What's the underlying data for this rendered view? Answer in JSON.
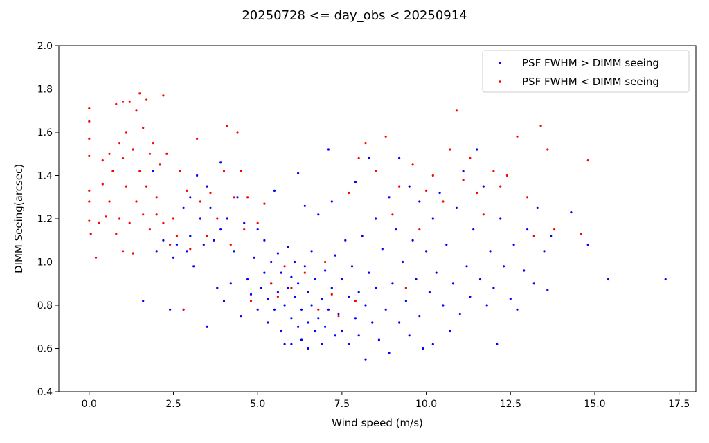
{
  "chart_data": {
    "type": "scatter",
    "title": "20250728 <= day_obs < 20250914",
    "xlabel": "Wind speed (m/s)",
    "ylabel": "DIMM Seeing(arcsec)",
    "xlim": [
      -0.9,
      18.0
    ],
    "ylim": [
      0.4,
      2.0
    ],
    "xticks": [
      0.0,
      2.5,
      5.0,
      7.5,
      10.0,
      12.5,
      15.0,
      17.5
    ],
    "xtick_labels": [
      "0.0",
      "2.5",
      "5.0",
      "7.5",
      "10.0",
      "12.5",
      "15.0",
      "17.5"
    ],
    "yticks": [
      0.4,
      0.6,
      0.8,
      1.0,
      1.2,
      1.4,
      1.6,
      1.8,
      2.0
    ],
    "ytick_labels": [
      "0.4",
      "0.6",
      "0.8",
      "1.0",
      "1.2",
      "1.4",
      "1.6",
      "1.8",
      "2.0"
    ],
    "grid": false,
    "legend_position": "top-right",
    "series": [
      {
        "name": "PSF FWHM > DIMM seeing",
        "color": "#0000ff",
        "points": [
          [
            1.6,
            0.82
          ],
          [
            1.9,
            1.42
          ],
          [
            2.0,
            1.05
          ],
          [
            2.2,
            1.1
          ],
          [
            2.4,
            0.78
          ],
          [
            2.5,
            1.02
          ],
          [
            2.6,
            1.08
          ],
          [
            2.8,
            1.25
          ],
          [
            2.8,
            0.78
          ],
          [
            2.9,
            1.05
          ],
          [
            3.0,
            1.3
          ],
          [
            3.0,
            1.12
          ],
          [
            3.1,
            0.98
          ],
          [
            3.2,
            1.4
          ],
          [
            3.3,
            1.2
          ],
          [
            3.4,
            1.08
          ],
          [
            3.5,
            0.7
          ],
          [
            3.5,
            1.35
          ],
          [
            3.6,
            1.25
          ],
          [
            3.7,
            1.1
          ],
          [
            3.8,
            0.88
          ],
          [
            3.9,
            1.15
          ],
          [
            3.9,
            1.46
          ],
          [
            4.0,
            0.82
          ],
          [
            4.1,
            1.2
          ],
          [
            4.2,
            0.9
          ],
          [
            4.3,
            1.05
          ],
          [
            4.4,
            1.3
          ],
          [
            4.5,
            0.75
          ],
          [
            4.6,
            1.18
          ],
          [
            4.7,
            0.92
          ],
          [
            4.8,
            0.85
          ],
          [
            4.9,
            1.02
          ],
          [
            5.0,
            0.78
          ],
          [
            5.0,
            1.15
          ],
          [
            5.1,
            0.88
          ],
          [
            5.2,
            0.95
          ],
          [
            5.2,
            1.1
          ],
          [
            5.3,
            0.72
          ],
          [
            5.3,
            0.83
          ],
          [
            5.4,
            1.0
          ],
          [
            5.4,
            0.9
          ],
          [
            5.5,
            1.33
          ],
          [
            5.5,
            0.78
          ],
          [
            5.6,
            0.86
          ],
          [
            5.6,
            1.04
          ],
          [
            5.7,
            0.68
          ],
          [
            5.7,
            0.95
          ],
          [
            5.8,
            0.8
          ],
          [
            5.8,
            0.62
          ],
          [
            5.9,
            1.07
          ],
          [
            5.9,
            0.88
          ],
          [
            6.0,
            0.74
          ],
          [
            6.0,
            0.93
          ],
          [
            6.0,
            0.62
          ],
          [
            6.1,
            0.84
          ],
          [
            6.1,
            1.0
          ],
          [
            6.2,
            0.7
          ],
          [
            6.2,
            0.9
          ],
          [
            6.2,
            1.41
          ],
          [
            6.3,
            0.64
          ],
          [
            6.3,
            0.78
          ],
          [
            6.4,
            0.98
          ],
          [
            6.4,
            1.26
          ],
          [
            6.5,
            0.72
          ],
          [
            6.5,
            0.86
          ],
          [
            6.5,
            0.6
          ],
          [
            6.6,
            1.05
          ],
          [
            6.6,
            0.8
          ],
          [
            6.7,
            0.68
          ],
          [
            6.7,
            0.92
          ],
          [
            6.8,
            1.22
          ],
          [
            6.8,
            0.74
          ],
          [
            6.9,
            0.83
          ],
          [
            6.9,
            0.62
          ],
          [
            7.0,
            0.96
          ],
          [
            7.0,
            0.7
          ],
          [
            7.1,
            1.52
          ],
          [
            7.1,
            0.78
          ],
          [
            7.2,
            1.28
          ],
          [
            7.2,
            0.88
          ],
          [
            7.3,
            0.66
          ],
          [
            7.3,
            1.03
          ],
          [
            7.4,
            0.76
          ],
          [
            7.5,
            0.92
          ],
          [
            7.5,
            0.68
          ],
          [
            7.6,
            1.1
          ],
          [
            7.7,
            0.84
          ],
          [
            7.7,
            0.62
          ],
          [
            7.8,
            0.98
          ],
          [
            7.9,
            0.74
          ],
          [
            7.9,
            1.37
          ],
          [
            8.0,
            0.86
          ],
          [
            8.0,
            0.66
          ],
          [
            8.1,
            1.12
          ],
          [
            8.2,
            0.55
          ],
          [
            8.2,
            0.8
          ],
          [
            8.3,
            1.48
          ],
          [
            8.3,
            0.95
          ],
          [
            8.4,
            0.72
          ],
          [
            8.5,
            1.2
          ],
          [
            8.5,
            0.88
          ],
          [
            8.6,
            0.64
          ],
          [
            8.7,
            1.06
          ],
          [
            8.8,
            0.78
          ],
          [
            8.9,
            0.58
          ],
          [
            8.9,
            1.3
          ],
          [
            9.0,
            0.9
          ],
          [
            9.1,
            1.15
          ],
          [
            9.2,
            0.72
          ],
          [
            9.2,
            1.48
          ],
          [
            9.3,
            1.0
          ],
          [
            9.4,
            0.82
          ],
          [
            9.5,
            1.35
          ],
          [
            9.5,
            0.66
          ],
          [
            9.6,
            1.1
          ],
          [
            9.7,
            0.92
          ],
          [
            9.8,
            1.28
          ],
          [
            9.8,
            0.75
          ],
          [
            9.9,
            0.6
          ],
          [
            10.0,
            1.05
          ],
          [
            10.1,
            0.86
          ],
          [
            10.2,
            1.2
          ],
          [
            10.2,
            0.62
          ],
          [
            10.3,
            0.95
          ],
          [
            10.4,
            1.32
          ],
          [
            10.5,
            0.8
          ],
          [
            10.6,
            1.08
          ],
          [
            10.7,
            0.68
          ],
          [
            10.8,
            0.9
          ],
          [
            10.9,
            1.25
          ],
          [
            11.0,
            0.76
          ],
          [
            11.1,
            1.42
          ],
          [
            11.2,
            0.98
          ],
          [
            11.3,
            0.84
          ],
          [
            11.4,
            1.15
          ],
          [
            11.5,
            1.52
          ],
          [
            11.6,
            0.92
          ],
          [
            11.7,
            1.35
          ],
          [
            11.8,
            0.8
          ],
          [
            11.9,
            1.05
          ],
          [
            12.0,
            0.88
          ],
          [
            12.1,
            0.62
          ],
          [
            12.2,
            1.2
          ],
          [
            12.3,
            0.98
          ],
          [
            12.5,
            0.83
          ],
          [
            12.6,
            1.08
          ],
          [
            12.7,
            0.78
          ],
          [
            12.9,
            0.96
          ],
          [
            13.0,
            1.15
          ],
          [
            13.2,
            0.9
          ],
          [
            13.3,
            1.25
          ],
          [
            13.5,
            1.05
          ],
          [
            13.6,
            0.87
          ],
          [
            13.7,
            1.12
          ],
          [
            14.3,
            1.23
          ],
          [
            14.8,
            1.08
          ],
          [
            15.4,
            0.92
          ],
          [
            17.1,
            0.92
          ]
        ]
      },
      {
        "name": "PSF FWHM < DIMM seeing",
        "color": "#ff0000",
        "points": [
          [
            0.0,
            1.71
          ],
          [
            0.0,
            1.65
          ],
          [
            0.0,
            1.57
          ],
          [
            0.0,
            1.49
          ],
          [
            0.0,
            1.33
          ],
          [
            0.0,
            1.28
          ],
          [
            0.0,
            1.19
          ],
          [
            0.05,
            1.13
          ],
          [
            0.2,
            1.02
          ],
          [
            0.3,
            1.18
          ],
          [
            0.4,
            1.47
          ],
          [
            0.4,
            1.36
          ],
          [
            0.5,
            1.21
          ],
          [
            0.6,
            1.5
          ],
          [
            0.6,
            1.28
          ],
          [
            0.7,
            1.42
          ],
          [
            0.8,
            1.73
          ],
          [
            0.8,
            1.13
          ],
          [
            0.9,
            1.55
          ],
          [
            0.9,
            1.2
          ],
          [
            1.0,
            1.74
          ],
          [
            1.0,
            1.48
          ],
          [
            1.0,
            1.05
          ],
          [
            1.1,
            1.6
          ],
          [
            1.1,
            1.35
          ],
          [
            1.2,
            1.18
          ],
          [
            1.2,
            1.74
          ],
          [
            1.3,
            1.52
          ],
          [
            1.3,
            1.04
          ],
          [
            1.4,
            1.7
          ],
          [
            1.4,
            1.28
          ],
          [
            1.5,
            1.78
          ],
          [
            1.5,
            1.42
          ],
          [
            1.6,
            1.62
          ],
          [
            1.6,
            1.22
          ],
          [
            1.7,
            1.75
          ],
          [
            1.7,
            1.35
          ],
          [
            1.8,
            1.5
          ],
          [
            1.8,
            1.15
          ],
          [
            1.9,
            1.55
          ],
          [
            2.0,
            1.3
          ],
          [
            2.0,
            1.22
          ],
          [
            2.1,
            1.45
          ],
          [
            2.2,
            1.77
          ],
          [
            2.2,
            1.18
          ],
          [
            2.3,
            1.5
          ],
          [
            2.4,
            1.08
          ],
          [
            2.5,
            1.2
          ],
          [
            2.6,
            1.12
          ],
          [
            2.7,
            1.42
          ],
          [
            2.8,
            0.78
          ],
          [
            2.9,
            1.33
          ],
          [
            3.0,
            1.06
          ],
          [
            3.2,
            1.57
          ],
          [
            3.3,
            1.28
          ],
          [
            3.5,
            1.12
          ],
          [
            3.6,
            1.32
          ],
          [
            3.8,
            1.2
          ],
          [
            4.0,
            1.42
          ],
          [
            4.1,
            1.63
          ],
          [
            4.2,
            1.08
          ],
          [
            4.3,
            1.3
          ],
          [
            4.4,
            1.6
          ],
          [
            4.5,
            1.42
          ],
          [
            4.6,
            1.15
          ],
          [
            4.7,
            1.3
          ],
          [
            4.8,
            0.82
          ],
          [
            5.0,
            1.18
          ],
          [
            5.2,
            1.27
          ],
          [
            5.4,
            0.9
          ],
          [
            5.6,
            0.84
          ],
          [
            5.8,
            0.98
          ],
          [
            6.0,
            0.88
          ],
          [
            6.4,
            0.95
          ],
          [
            6.8,
            0.78
          ],
          [
            7.0,
            1.0
          ],
          [
            7.2,
            0.85
          ],
          [
            7.4,
            0.75
          ],
          [
            7.7,
            1.32
          ],
          [
            7.9,
            0.82
          ],
          [
            8.0,
            1.48
          ],
          [
            8.2,
            1.55
          ],
          [
            8.5,
            1.42
          ],
          [
            8.8,
            1.58
          ],
          [
            9.0,
            1.22
          ],
          [
            9.2,
            1.35
          ],
          [
            9.4,
            0.88
          ],
          [
            9.6,
            1.45
          ],
          [
            9.8,
            1.15
          ],
          [
            10.0,
            1.33
          ],
          [
            10.2,
            1.4
          ],
          [
            10.5,
            1.28
          ],
          [
            10.7,
            1.52
          ],
          [
            10.9,
            1.7
          ],
          [
            11.1,
            1.38
          ],
          [
            11.3,
            1.48
          ],
          [
            11.5,
            1.32
          ],
          [
            11.7,
            1.22
          ],
          [
            12.0,
            1.42
          ],
          [
            12.2,
            1.35
          ],
          [
            12.4,
            1.4
          ],
          [
            12.7,
            1.58
          ],
          [
            13.0,
            1.3
          ],
          [
            13.2,
            1.12
          ],
          [
            13.4,
            1.63
          ],
          [
            13.6,
            1.52
          ],
          [
            13.8,
            1.15
          ],
          [
            14.6,
            1.13
          ],
          [
            14.8,
            1.47
          ]
        ]
      }
    ]
  }
}
